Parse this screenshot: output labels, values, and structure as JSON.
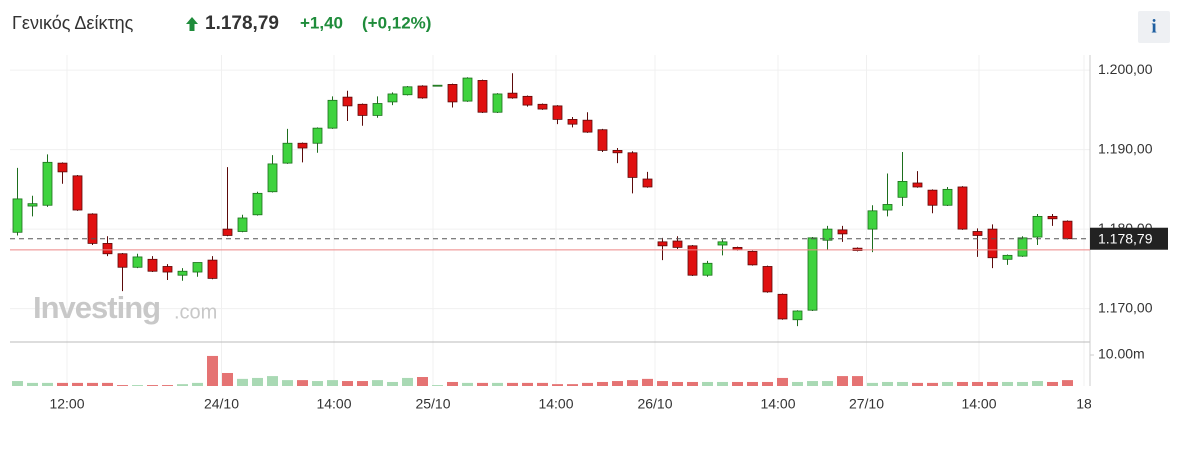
{
  "header": {
    "name": "Γενικός Δείκτης",
    "price": "1.178,79",
    "change": "+1,40",
    "change_pct": "(+0,12%)",
    "info": "i"
  },
  "chart_data": {
    "type": "candlestick",
    "watermark": "Investing",
    "watermark_suffix": ".com",
    "xlim": [
      -0.5,
      71.5
    ],
    "xticks": [
      {
        "value": 3.3,
        "label": "12:00"
      },
      {
        "value": 13.6,
        "label": "24/10"
      },
      {
        "value": 21.1,
        "label": "14:00"
      },
      {
        "value": 27.7,
        "label": "25/10"
      },
      {
        "value": 35.9,
        "label": "14:00"
      },
      {
        "value": 42.5,
        "label": "26/10"
      },
      {
        "value": 50.7,
        "label": "14:00"
      },
      {
        "value": 56.6,
        "label": "27/10"
      },
      {
        "value": 64.1,
        "label": "14:00"
      },
      {
        "value": 71.1,
        "label": "18"
      }
    ],
    "ylim": [
      1165.8,
      1201.9
    ],
    "yticks": [
      {
        "value": 1200,
        "label": "1.200,00"
      },
      {
        "value": 1190,
        "label": "1.190,00"
      },
      {
        "value": 1180,
        "label": "1.180,00"
      },
      {
        "value": 1170,
        "label": "1.170,00"
      }
    ],
    "volume_ylim": [
      0,
      14.2
    ],
    "volume_yticks": [
      {
        "value": 10,
        "label": "10.00m"
      }
    ],
    "last": {
      "value": 1178.79,
      "label": "1.178,79"
    },
    "reference_line": 1177.39,
    "grid": true,
    "up_color": "#3fd33f",
    "up_border": "#1d6e1d",
    "down_color": "#e01010",
    "down_border": "#5c0a0a",
    "volume_up_color": "#a9d9b4",
    "volume_down_color": "#e57373",
    "open": [
      1179.6,
      1182.9,
      1183.0,
      1188.3,
      1186.7,
      1181.9,
      1178.2,
      1176.9,
      1175.2,
      1176.2,
      1175.3,
      1174.2,
      1174.6,
      1176.1,
      1180.0,
      1179.7,
      1181.8,
      1184.7,
      1188.3,
      1190.8,
      1190.8,
      1192.7,
      1196.6,
      1195.7,
      1194.3,
      1196.0,
      1196.9,
      1198.0,
      1198.1,
      1198.2,
      1196.1,
      1198.7,
      1194.7,
      1197.1,
      1196.7,
      1195.7,
      1195.5,
      1193.8,
      1193.7,
      1192.5,
      1189.9,
      1189.6,
      1186.3,
      1178.4,
      1178.5,
      1177.9,
      1174.2,
      1178.0,
      1177.7,
      1177.2,
      1175.3,
      1171.8,
      1168.6,
      1169.8,
      1178.6,
      1179.9,
      1177.6,
      1180.0,
      1182.4,
      1184.0,
      1185.8,
      1184.9,
      1183.0,
      1185.3,
      1179.7,
      1180.0,
      1176.2,
      1176.6,
      1179.0,
      1181.6,
      1181.0
    ],
    "high": [
      1187.7,
      1184.2,
      1189.4,
      1188.4,
      1186.8,
      1182.0,
      1179.1,
      1177.0,
      1176.9,
      1176.6,
      1175.6,
      1175.1,
      1175.8,
      1176.6,
      1187.8,
      1181.8,
      1184.7,
      1189.3,
      1192.6,
      1190.9,
      1192.8,
      1196.7,
      1197.4,
      1195.8,
      1196.7,
      1197.2,
      1198.0,
      1198.1,
      1198.1,
      1198.3,
      1199.1,
      1198.8,
      1197.1,
      1199.6,
      1196.8,
      1195.8,
      1195.6,
      1194.1,
      1194.7,
      1192.6,
      1190.2,
      1189.8,
      1187.2,
      1178.9,
      1179.1,
      1178.0,
      1176.0,
      1178.7,
      1177.8,
      1177.3,
      1175.4,
      1171.9,
      1169.8,
      1179.0,
      1180.4,
      1180.4,
      1177.7,
      1183.0,
      1187.0,
      1189.7,
      1187.3,
      1185.0,
      1185.3,
      1185.4,
      1180.1,
      1180.6,
      1176.8,
      1179.1,
      1181.9,
      1181.9,
      1181.1
    ],
    "low": [
      1179.2,
      1181.6,
      1182.8,
      1185.7,
      1182.3,
      1178.0,
      1176.6,
      1172.2,
      1175.1,
      1174.6,
      1173.6,
      1173.5,
      1174.0,
      1173.7,
      1179.1,
      1179.6,
      1181.7,
      1184.6,
      1188.2,
      1188.4,
      1189.6,
      1192.6,
      1193.6,
      1193.0,
      1194.0,
      1195.6,
      1196.8,
      1196.4,
      1198.1,
      1195.3,
      1196.0,
      1194.6,
      1194.6,
      1196.4,
      1195.4,
      1195.0,
      1193.2,
      1192.8,
      1192.1,
      1189.7,
      1188.3,
      1184.5,
      1185.2,
      1176.1,
      1177.5,
      1174.1,
      1174.0,
      1176.7,
      1177.3,
      1175.4,
      1172.0,
      1168.6,
      1167.8,
      1169.7,
      1177.4,
      1178.4,
      1177.2,
      1177.1,
      1181.6,
      1182.9,
      1185.2,
      1182.0,
      1182.9,
      1179.9,
      1176.5,
      1175.1,
      1175.5,
      1176.5,
      1178.0,
      1180.4,
      1178.7
    ],
    "close": [
      1183.8,
      1183.2,
      1188.4,
      1187.2,
      1182.4,
      1178.2,
      1176.9,
      1175.2,
      1176.5,
      1174.7,
      1174.6,
      1174.7,
      1175.8,
      1173.8,
      1179.2,
      1181.4,
      1184.5,
      1188.2,
      1190.8,
      1190.2,
      1192.7,
      1196.2,
      1195.5,
      1194.3,
      1195.8,
      1197.0,
      1197.9,
      1196.5,
      1198.1,
      1196.0,
      1199.0,
      1194.7,
      1197.0,
      1196.5,
      1195.6,
      1195.1,
      1193.8,
      1193.2,
      1192.2,
      1189.9,
      1189.6,
      1186.5,
      1185.3,
      1177.9,
      1177.7,
      1174.2,
      1175.7,
      1178.4,
      1177.4,
      1175.5,
      1172.1,
      1168.7,
      1169.7,
      1178.9,
      1180.0,
      1179.4,
      1177.3,
      1182.3,
      1183.1,
      1186.0,
      1185.3,
      1183.0,
      1185.0,
      1180.0,
      1179.2,
      1176.4,
      1176.7,
      1178.9,
      1181.6,
      1181.3,
      1178.79
    ],
    "volume": [
      1.6,
      1.0,
      1.0,
      1.0,
      1.0,
      1.0,
      1.0,
      0.3,
      0.3,
      0.3,
      0.3,
      0.6,
      1.0,
      9.7,
      4.2,
      2.3,
      2.6,
      3.2,
      1.9,
      1.9,
      1.6,
      1.9,
      1.6,
      1.6,
      1.9,
      1.3,
      2.6,
      2.9,
      0.3,
      1.3,
      1.0,
      1.0,
      1.0,
      1.0,
      1.0,
      1.0,
      0.6,
      0.6,
      1.0,
      1.3,
      1.6,
      1.9,
      2.3,
      1.6,
      1.3,
      1.3,
      1.3,
      1.3,
      1.3,
      1.3,
      1.3,
      2.6,
      1.3,
      1.6,
      1.6,
      3.2,
      3.2,
      1.0,
      1.3,
      1.3,
      1.0,
      1.0,
      1.3,
      1.3,
      1.3,
      1.3,
      1.3,
      1.3,
      1.6,
      1.3,
      1.9
    ]
  }
}
